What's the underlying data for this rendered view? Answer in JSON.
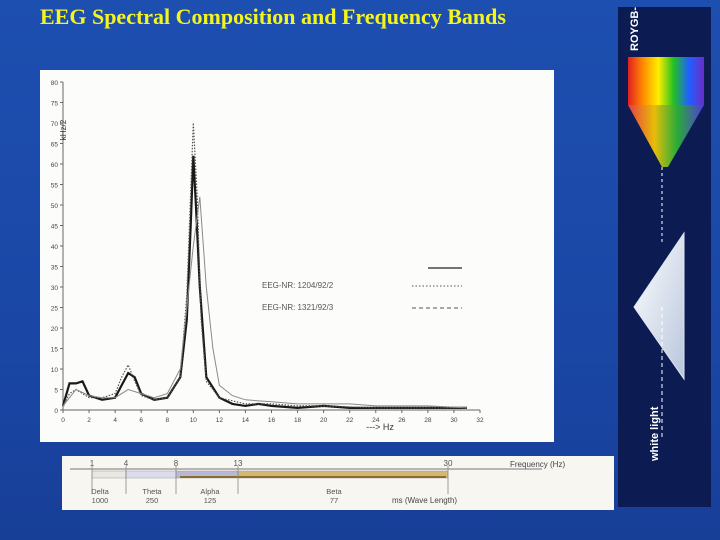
{
  "slide": {
    "title": "EEG Spectral Composition and Frequency Bands"
  },
  "chart_data": {
    "type": "line",
    "xlabel": "---> Hz",
    "ylabel": "kHz/2",
    "xlim": [
      0,
      32
    ],
    "ylim": [
      0,
      80
    ],
    "xticks": [
      0,
      2,
      4,
      6,
      8,
      10,
      12,
      14,
      16,
      18,
      20,
      22,
      24,
      26,
      28,
      30,
      32
    ],
    "yticks": [
      0,
      5,
      10,
      15,
      20,
      25,
      30,
      35,
      40,
      45,
      50,
      55,
      60,
      65,
      70,
      75,
      80
    ],
    "legend": [
      {
        "label": "EEG-NR: 1204/92/2",
        "style": "dotted"
      },
      {
        "label": "EEG-NR: 1321/92/3",
        "style": "dashed"
      }
    ],
    "series": [
      {
        "style": "solid-bold",
        "x": [
          0,
          0.5,
          1,
          1.5,
          2,
          3,
          4,
          4.5,
          5,
          5.5,
          6,
          7,
          8,
          9,
          9.5,
          9.8,
          10,
          10.2,
          10.5,
          11,
          12,
          13,
          14,
          15,
          16,
          18,
          20,
          22,
          24,
          26,
          28,
          30,
          31
        ],
        "y": [
          1,
          6.5,
          6.5,
          7,
          3.5,
          2.5,
          3,
          6,
          9,
          8,
          4,
          2.5,
          3,
          8,
          22,
          45,
          62,
          50,
          30,
          8,
          3,
          1.5,
          1,
          1.5,
          1,
          0.5,
          1,
          0.5,
          0.5,
          0.5,
          0.5,
          0.5,
          0.5
        ]
      },
      {
        "style": "dotted",
        "x": [
          0,
          0.5,
          1,
          2,
          3,
          4,
          4.5,
          5,
          5.5,
          6,
          7,
          8,
          9,
          9.5,
          10,
          10.3,
          10.6,
          11,
          12,
          14,
          16,
          18,
          20,
          24,
          28,
          31
        ],
        "y": [
          1,
          4,
          5,
          3,
          3,
          4,
          8,
          11,
          7,
          3.5,
          2.5,
          3,
          8,
          28,
          70,
          52,
          22,
          7,
          3,
          1.5,
          1.5,
          1,
          1,
          0.5,
          0.5,
          0.5
        ]
      },
      {
        "style": "thin-gray",
        "x": [
          0,
          1,
          2,
          3,
          4,
          5,
          6,
          7,
          8,
          9,
          10,
          10.5,
          11,
          11.5,
          12,
          13,
          14,
          16,
          18,
          20,
          22,
          24,
          28,
          31
        ],
        "y": [
          1,
          5,
          3.5,
          3,
          3,
          5,
          4,
          3,
          4,
          10,
          40,
          52,
          30,
          15,
          6,
          3.5,
          2.5,
          2,
          1.5,
          1.5,
          1.5,
          1,
          1,
          0.5
        ]
      }
    ]
  },
  "bands": {
    "axis_label": "Frequency (Hz)",
    "freq_ticks": [
      "1",
      "4",
      "8",
      "13",
      "30"
    ],
    "band_names": [
      "Delta",
      "Theta",
      "Alpha",
      "Beta"
    ],
    "wavelengths": [
      "1000",
      "250",
      "125",
      "77"
    ],
    "wavelength_label": "ms (Wave Length)"
  },
  "prism": {
    "colors_label": "ROYGB->",
    "white_light_label": "white light"
  }
}
